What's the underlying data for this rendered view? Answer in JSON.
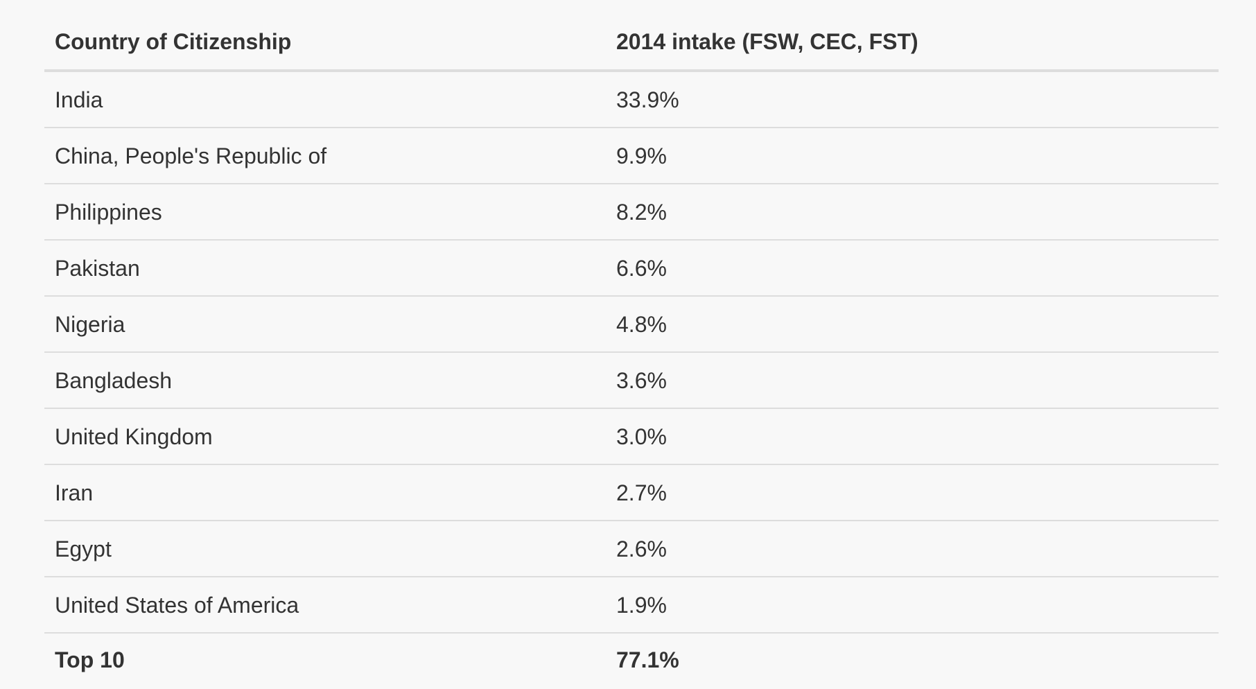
{
  "table": {
    "headers": [
      "Country of Citizenship",
      "2014 intake (FSW, CEC, FST)"
    ],
    "rows": [
      [
        "India",
        "33.9%"
      ],
      [
        "China, People's Republic of",
        "9.9%"
      ],
      [
        "Philippines",
        "8.2%"
      ],
      [
        "Pakistan",
        "6.6%"
      ],
      [
        "Nigeria",
        "4.8%"
      ],
      [
        "Bangladesh",
        "3.6%"
      ],
      [
        "United Kingdom",
        "3.0%"
      ],
      [
        "Iran",
        "2.7%"
      ],
      [
        "Egypt",
        "2.6%"
      ],
      [
        "United States of America",
        "1.9%"
      ]
    ],
    "total": [
      "Top 10",
      "77.1%"
    ]
  },
  "colors": {
    "text": "#333333",
    "background": "#f8f8f8",
    "rule": "#dddddd"
  }
}
